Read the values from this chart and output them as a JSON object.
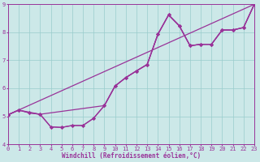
{
  "xlabel": "Windchill (Refroidissement éolien,°C)",
  "background_color": "#cce8e8",
  "line_color": "#993399",
  "grid_color": "#99cccc",
  "xlim": [
    0,
    23
  ],
  "ylim": [
    4,
    9
  ],
  "yticks": [
    4,
    5,
    6,
    7,
    8,
    9
  ],
  "xticks": [
    0,
    1,
    2,
    3,
    4,
    5,
    6,
    7,
    8,
    9,
    10,
    11,
    12,
    13,
    14,
    15,
    16,
    17,
    18,
    19,
    20,
    21,
    22,
    23
  ],
  "line1_x": [
    0,
    1,
    2,
    3,
    4,
    5,
    6,
    7,
    8,
    9,
    10,
    11,
    12,
    13,
    14,
    15,
    16,
    17,
    18,
    19,
    20,
    21,
    22,
    23
  ],
  "line1_y": [
    5.05,
    5.22,
    5.12,
    5.07,
    4.62,
    4.6,
    4.67,
    4.67,
    4.93,
    5.38,
    6.08,
    6.38,
    6.62,
    6.85,
    7.93,
    8.62,
    8.23,
    7.52,
    7.57,
    7.57,
    8.08,
    8.08,
    8.17,
    9.0
  ],
  "line2_x": [
    0,
    1,
    3,
    4,
    5,
    6,
    7,
    8,
    9,
    10,
    11,
    12,
    13,
    14,
    15,
    16,
    17,
    18,
    19,
    20,
    21,
    22,
    23
  ],
  "line2_y": [
    5.05,
    5.22,
    5.07,
    4.62,
    4.6,
    4.67,
    4.67,
    4.93,
    5.38,
    6.08,
    6.38,
    6.62,
    6.85,
    7.93,
    8.62,
    8.23,
    7.52,
    7.57,
    7.57,
    8.08,
    8.08,
    8.17,
    9.0
  ],
  "line3_x": [
    0,
    1,
    2,
    3,
    9,
    10,
    11,
    12,
    13,
    14,
    15,
    16,
    17,
    18,
    19,
    20,
    21,
    22,
    23
  ],
  "line3_y": [
    5.05,
    5.22,
    5.12,
    5.07,
    5.38,
    6.08,
    6.38,
    6.62,
    6.85,
    7.93,
    8.62,
    8.23,
    7.52,
    7.57,
    7.57,
    8.08,
    8.08,
    8.17,
    9.0
  ],
  "line4_x": [
    0,
    23
  ],
  "line4_y": [
    5.05,
    9.0
  ]
}
